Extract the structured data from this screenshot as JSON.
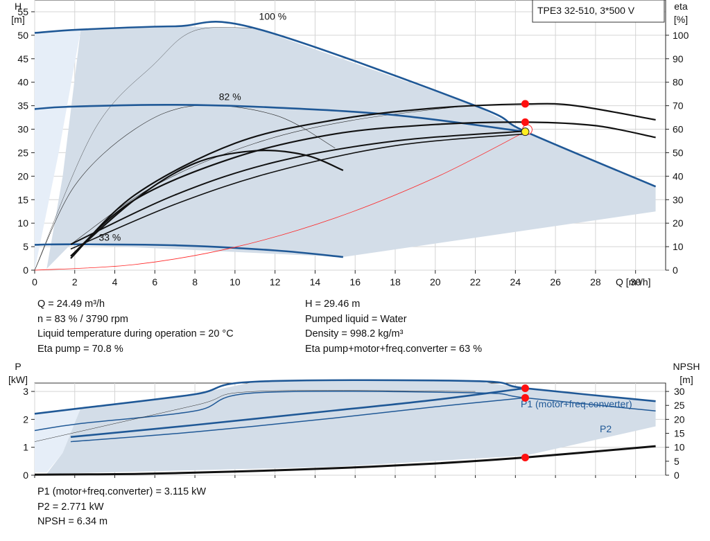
{
  "chart_data": [
    {
      "type": "line",
      "title": "TPE3 32-510, 3*500 V",
      "x_axis": {
        "label": "Q [m³/h]",
        "range": [
          0,
          31.5
        ],
        "ticks": [
          0,
          2,
          4,
          6,
          8,
          10,
          12,
          14,
          16,
          18,
          20,
          22,
          24,
          26,
          28,
          30
        ]
      },
      "y_axis_left": {
        "label_line1": "H",
        "label_line2": "[m]",
        "range": [
          0,
          57.5
        ],
        "ticks": [
          0,
          5,
          10,
          15,
          20,
          25,
          30,
          35,
          40,
          45,
          50,
          55
        ]
      },
      "y_axis_right": {
        "label_line1": "eta",
        "label_line2": "[%]",
        "range": [
          0,
          115
        ],
        "ticks": [
          0,
          10,
          20,
          30,
          40,
          50,
          60,
          70,
          80,
          90,
          100
        ]
      },
      "grid": true,
      "annotations": [
        "100 %",
        "82 %",
        "33 %"
      ],
      "series": [
        {
          "role": "head_100",
          "color": "#1f5896",
          "points": [
            [
              0,
              50.5
            ],
            [
              2.3,
              51.2
            ],
            [
              7,
              51.9
            ],
            [
              11,
              51.5
            ],
            [
              22,
              35
            ],
            [
              24.5,
              29.5
            ],
            [
              31,
              17.8
            ]
          ]
        },
        {
          "role": "head_82",
          "color": "#1f5896",
          "points": [
            [
              0,
              34.3
            ],
            [
              1.8,
              34.8
            ],
            [
              7,
              35.2
            ],
            [
              12,
              34.6
            ],
            [
              18,
              33
            ],
            [
              24.49,
              29.46
            ]
          ]
        },
        {
          "role": "head_33",
          "color": "#1f5896",
          "points": [
            [
              0,
              5.4
            ],
            [
              1.8,
              5.5
            ],
            [
              7,
              5.3
            ],
            [
              12,
              4.2
            ],
            [
              15.4,
              2.8
            ]
          ]
        },
        {
          "role": "eta_100",
          "color": "#111111",
          "points": [
            [
              1.8,
              5
            ],
            [
              5,
              32
            ],
            [
              10,
              54
            ],
            [
              15,
              64
            ],
            [
              20,
              69
            ],
            [
              24.5,
              70.7
            ],
            [
              27,
              70
            ],
            [
              31,
              64
            ]
          ]
        },
        {
          "role": "eta_82",
          "color": "#111111",
          "points": [
            [
              1.8,
              6
            ],
            [
              5,
              30
            ],
            [
              10,
              48
            ],
            [
              15,
              58
            ],
            [
              20,
              62
            ],
            [
              24.5,
              63
            ],
            [
              28,
              61.5
            ],
            [
              31,
              56.5
            ]
          ]
        },
        {
          "role": "eta_33",
          "color": "#111111",
          "points": [
            [
              1.8,
              6
            ],
            [
              5,
              30
            ],
            [
              8,
              45.5
            ],
            [
              11,
              50.8
            ],
            [
              13.5,
              49
            ],
            [
              15.4,
              42.5
            ]
          ]
        },
        {
          "role": "system_curve",
          "color": "#ff2020",
          "points": [
            [
              0,
              0
            ],
            [
              5,
              1.2
            ],
            [
              10,
              4.9
            ],
            [
              15,
              11.1
            ],
            [
              20,
              19.7
            ],
            [
              24.49,
              29.46
            ]
          ]
        }
      ],
      "operating_points": [
        {
          "x": 24.49,
          "y": 29.46,
          "style": "yellow"
        },
        {
          "x": 24.49,
          "y": 31.5,
          "style": "red"
        },
        {
          "x": 24.49,
          "y": 35.4,
          "style": "red"
        }
      ]
    },
    {
      "type": "line",
      "x_axis": {
        "range": [
          0,
          31.5
        ]
      },
      "y_axis_left": {
        "label_line1": "P",
        "label_line2": "[kW]",
        "range": [
          0,
          3.3
        ],
        "ticks": [
          0,
          1,
          2,
          3
        ]
      },
      "y_axis_right": {
        "label_line1": "NPSH",
        "label_line2": "[m]",
        "range": [
          0,
          33
        ],
        "ticks": [
          0,
          5,
          10,
          15,
          20,
          25,
          30
        ]
      },
      "grid": true,
      "series": [
        {
          "name": "P1 (motor+freq.converter)",
          "color": "#1f5896",
          "points": [
            [
              0,
              2.2
            ],
            [
              2.3,
              2.4
            ],
            [
              8,
              2.9
            ],
            [
              11,
              3.35
            ],
            [
              22,
              3.37
            ],
            [
              24.49,
              3.115
            ],
            [
              31,
              2.65
            ]
          ]
        },
        {
          "name": "P2",
          "color": "#1f5896",
          "points": [
            [
              0,
              1.6
            ],
            [
              2.3,
              1.85
            ],
            [
              8,
              2.3
            ],
            [
              11,
              2.95
            ],
            [
              22,
              2.95
            ],
            [
              24.49,
              2.771
            ],
            [
              31,
              2.3
            ]
          ]
        },
        {
          "role": "P1_82",
          "color": "#1f5896",
          "points": [
            [
              1.8,
              1.37
            ],
            [
              8,
              1.8
            ],
            [
              15,
              2.32
            ],
            [
              20,
              2.7
            ],
            [
              24.49,
              3.115
            ]
          ]
        },
        {
          "role": "P2_82",
          "color": "#1f5896",
          "points": [
            [
              1.8,
              1.2
            ],
            [
              8,
              1.55
            ],
            [
              15,
              2.05
            ],
            [
              20,
              2.45
            ],
            [
              24.49,
              2.771
            ]
          ]
        },
        {
          "role": "npsh",
          "color": "#111111",
          "points": [
            [
              0,
              0.2
            ],
            [
              5,
              0.45
            ],
            [
              10,
              1.3
            ],
            [
              15,
              2.5
            ],
            [
              20,
              4.2
            ],
            [
              24.49,
              6.34
            ],
            [
              31,
              10.4
            ]
          ]
        }
      ],
      "operating_points": [
        {
          "x": 24.49,
          "y": 3.115,
          "style": "red"
        },
        {
          "x": 24.49,
          "y": 2.771,
          "style": "red"
        },
        {
          "x": 24.49,
          "y_npsh": 6.34,
          "style": "red"
        }
      ]
    }
  ],
  "info": {
    "left": [
      "Q = 24.49 m³/h",
      "n = 83 % / 3790 rpm",
      "Liquid temperature during operation = 20 °C",
      "Eta pump = 70.8 %"
    ],
    "right": [
      "H = 29.46 m",
      "Pumped liquid = Water",
      "Density = 998.2 kg/m³",
      "Eta pump+motor+freq.converter = 63 %"
    ],
    "bottom": [
      "P1 (motor+freq.converter) = 3.115 kW",
      "P2 = 2.771 kW",
      "NPSH = 6.34 m"
    ]
  }
}
